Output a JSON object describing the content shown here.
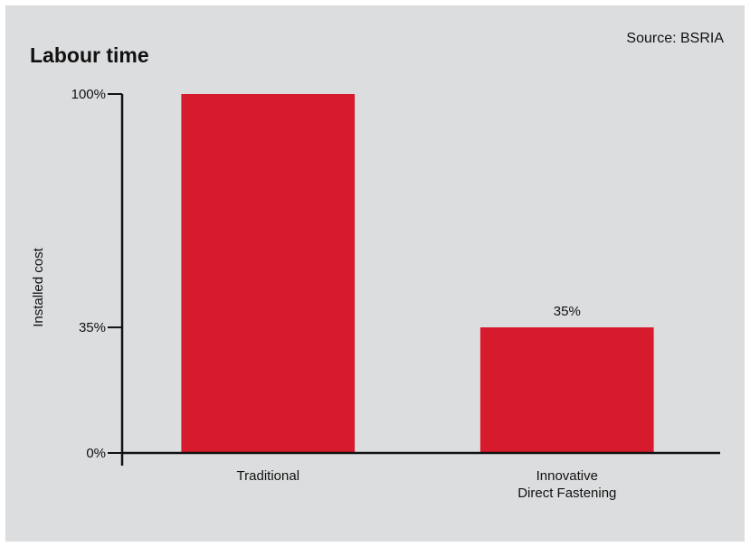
{
  "chart_data": {
    "type": "bar",
    "title": "Labour time",
    "source": "Source: BSRIA",
    "ylabel": "Installed cost",
    "xlabel": "",
    "categories": [
      [
        "Traditional"
      ],
      [
        "Innovative",
        "Direct Fastening"
      ]
    ],
    "values": [
      100,
      35
    ],
    "data_labels": [
      "",
      "35%"
    ],
    "yticks": [
      0,
      35,
      100
    ],
    "ytick_labels": [
      "0%",
      "35%",
      "100%"
    ],
    "ylim": [
      0,
      100
    ],
    "grid": false,
    "legend": "none",
    "colors": {
      "bar": "#d81a2d",
      "axis": "#111111",
      "background": "#dcdddf"
    }
  }
}
